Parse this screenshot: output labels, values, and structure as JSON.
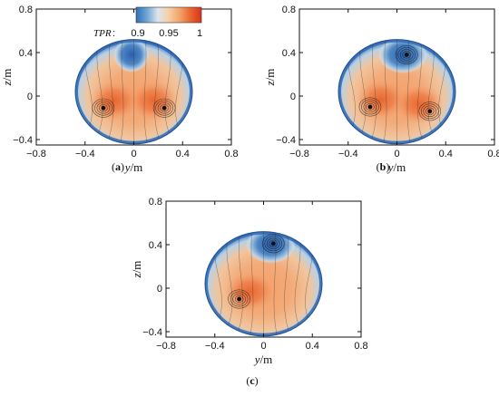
{
  "figure": {
    "colorbar": {
      "title": "TPR",
      "title_suffix": ":",
      "tick_labels": [
        "0.9",
        "0.95",
        "1"
      ],
      "colors": [
        "#2f6fb8",
        "#6fa6d4",
        "#dbe6ef",
        "#f6cfa6",
        "#f2a467",
        "#e9652f",
        "#d7341f"
      ]
    },
    "colors": {
      "low": "#2e64b3",
      "mid": "#f1d9bf",
      "high": "#ea6a31",
      "streamline": "#2a2a2a",
      "vortex": "#101010"
    }
  },
  "chart_data": [
    {
      "type": "heatmap",
      "panel": "a",
      "caption_open": "(",
      "caption_letter": "a",
      "caption_close": ")",
      "xlabel": "y",
      "xunit": "/m",
      "ylabel": "z",
      "yunit": "/m",
      "xlim": [
        -0.8,
        0.8
      ],
      "ylim": [
        -0.45,
        0.8
      ],
      "x_ticks": [
        -0.8,
        -0.4,
        0,
        0.4,
        0.8
      ],
      "x_tick_labels": [
        "−0.8",
        "−0.4",
        "0",
        "0.4",
        "0.8"
      ],
      "y_ticks": [
        -0.4,
        0,
        0.4,
        0.8
      ],
      "y_tick_labels": [
        "−0.4",
        "0",
        "0.4",
        "0.8"
      ],
      "duct_center": [
        0,
        0.04
      ],
      "duct_radius": 0.48,
      "vortices": [
        {
          "y": -0.25,
          "z": -0.11
        },
        {
          "y": 0.25,
          "z": -0.11
        }
      ],
      "low_tpr_region": {
        "y": -0.02,
        "z": 0.38,
        "value": 0.9
      },
      "tpr_range": [
        0.9,
        1
      ]
    },
    {
      "type": "heatmap",
      "panel": "b",
      "caption_open": "(",
      "caption_letter": "b",
      "caption_close": ")",
      "xlabel": "y",
      "xunit": "/m",
      "ylabel": "z",
      "yunit": "/m",
      "xlim": [
        -0.8,
        0.8
      ],
      "ylim": [
        -0.45,
        0.8
      ],
      "x_ticks": [
        -0.8,
        -0.4,
        0,
        0.4,
        0.8
      ],
      "x_tick_labels": [
        "−0.8",
        "−0.4",
        "0",
        "0.4",
        "0.8"
      ],
      "y_ticks": [
        -0.4,
        0,
        0.4,
        0.8
      ],
      "y_tick_labels": [
        "−0.4",
        "0",
        "0.4",
        "0.8"
      ],
      "duct_center": [
        0,
        0.04
      ],
      "duct_radius": 0.48,
      "vortices": [
        {
          "y": -0.22,
          "z": -0.1
        },
        {
          "y": 0.27,
          "z": -0.14
        },
        {
          "y": 0.08,
          "z": 0.38
        }
      ],
      "low_tpr_region": {
        "y": 0.05,
        "z": 0.38,
        "value": 0.9
      },
      "tpr_range": [
        0.9,
        1
      ]
    },
    {
      "type": "heatmap",
      "panel": "c",
      "caption_open": "(",
      "caption_letter": "c",
      "caption_close": ")",
      "xlabel": "y",
      "xunit": "/m",
      "ylabel": "z",
      "yunit": "/m",
      "xlim": [
        -0.8,
        0.8
      ],
      "ylim": [
        -0.45,
        0.8
      ],
      "x_ticks": [
        -0.8,
        -0.4,
        0,
        0.4,
        0.8
      ],
      "x_tick_labels": [
        "−0.8",
        "−0.4",
        "0",
        "0.4",
        "0.8"
      ],
      "y_ticks": [
        -0.4,
        0,
        0.4,
        0.8
      ],
      "y_tick_labels": [
        "−0.4",
        "0",
        "0.4",
        "0.8"
      ],
      "duct_center": [
        0,
        0.04
      ],
      "duct_radius": 0.48,
      "vortices": [
        {
          "y": -0.2,
          "z": -0.1
        },
        {
          "y": 0.08,
          "z": 0.41
        }
      ],
      "low_tpr_region": {
        "y": 0.06,
        "z": 0.4,
        "value": 0.9
      },
      "tpr_range": [
        0.9,
        1
      ]
    }
  ]
}
